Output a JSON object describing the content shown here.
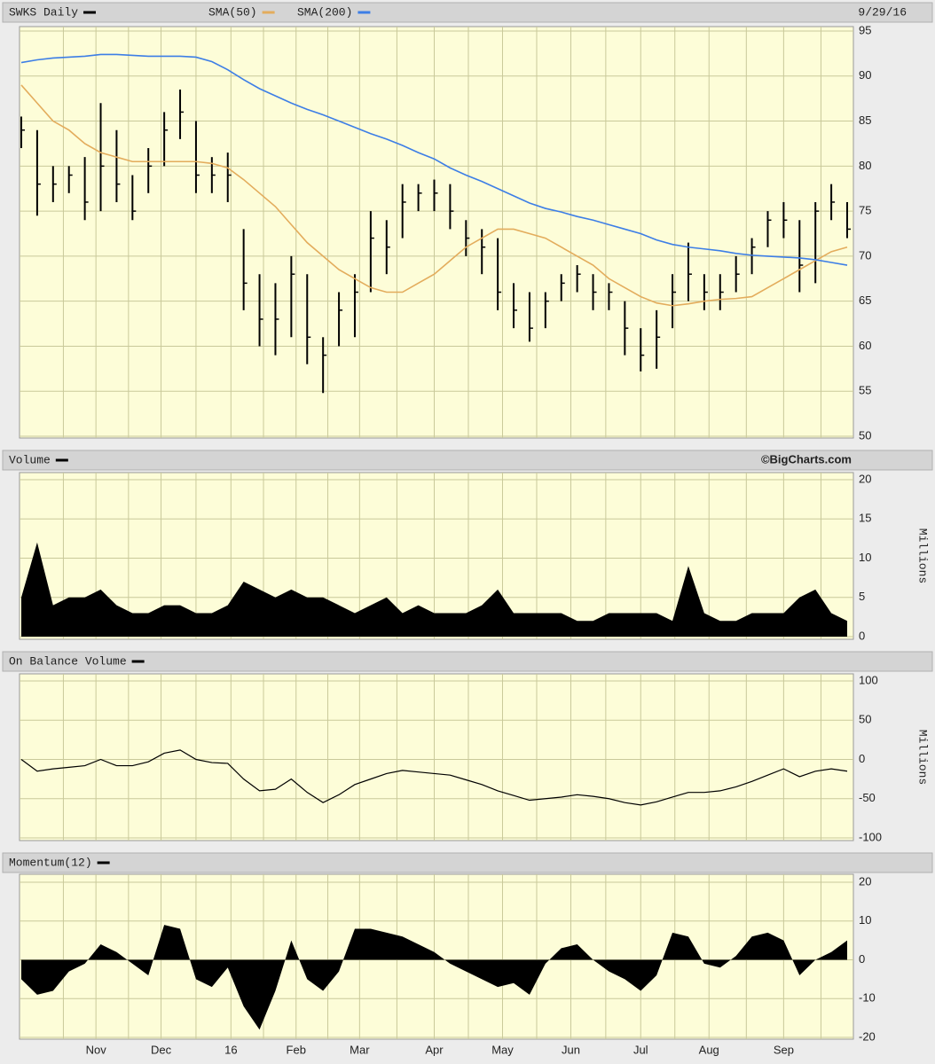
{
  "chart_data": [
    {
      "type": "hlc",
      "title": "SWKS Daily",
      "date": "9/29/16",
      "color": "#000000",
      "x": [
        0,
        1,
        2,
        3,
        4,
        5,
        6,
        7,
        8,
        9,
        10,
        11,
        12,
        13,
        14,
        15,
        16,
        17,
        18,
        19,
        20,
        21,
        22,
        23,
        24,
        25,
        26,
        27,
        28,
        29,
        30,
        31,
        32,
        33,
        34,
        35,
        36,
        37,
        38,
        39,
        40,
        41,
        42,
        43,
        44,
        45,
        46,
        47,
        48,
        49,
        50,
        51,
        52
      ],
      "high": [
        85.5,
        84,
        80,
        80,
        81,
        87,
        84,
        79,
        82,
        86,
        88.5,
        85,
        81,
        81.5,
        73,
        68,
        67,
        70,
        68,
        61,
        66,
        68,
        75,
        74,
        78,
        78,
        78.5,
        78,
        74,
        73,
        72,
        67,
        66,
        66,
        68,
        69,
        68,
        67,
        65,
        62,
        64,
        68,
        71.5,
        68,
        68,
        70,
        72,
        75,
        76,
        74,
        76,
        78,
        76
      ],
      "low": [
        82,
        74.5,
        76,
        77,
        74,
        75,
        76,
        74,
        77,
        80,
        83,
        77,
        77,
        76,
        64,
        60,
        59,
        61,
        58,
        54.8,
        60,
        61,
        66,
        68,
        72,
        75,
        75,
        73,
        70,
        68,
        64,
        62,
        60.5,
        62,
        65,
        66,
        64,
        64,
        59,
        57.2,
        57.5,
        62,
        65,
        64,
        64,
        66,
        68,
        71,
        72,
        66,
        67,
        74,
        72
      ],
      "close": [
        84,
        78,
        78,
        79,
        76,
        80,
        78,
        75,
        80,
        84,
        86,
        79,
        79,
        79,
        67,
        63,
        63,
        68,
        61,
        59,
        64,
        66,
        72,
        71,
        76,
        77,
        77,
        75,
        72,
        71,
        66,
        64,
        62,
        65,
        67,
        68,
        66,
        66,
        62,
        59,
        61,
        66,
        68,
        66,
        66,
        68,
        71,
        74,
        74,
        69,
        75,
        76,
        73
      ],
      "series": [
        {
          "name": "SMA(50)",
          "color": "#e3ac5c",
          "values": [
            89,
            87,
            85,
            84,
            82.5,
            81.5,
            81,
            80.5,
            80.5,
            80.5,
            80.5,
            80.5,
            80.3,
            79.8,
            78.5,
            77,
            75.5,
            73.5,
            71.5,
            70,
            68.5,
            67.5,
            66.5,
            66,
            66,
            67,
            68,
            69.5,
            71,
            72,
            73,
            73,
            72.5,
            72,
            71,
            70,
            69,
            67.5,
            66.5,
            65.5,
            64.8,
            64.5,
            64.7,
            65,
            65.2,
            65.3,
            65.5,
            66.5,
            67.5,
            68.5,
            69.5,
            70.5,
            71
          ]
        },
        {
          "name": "SMA(200)",
          "color": "#3d7ee6",
          "values": [
            91.5,
            91.8,
            92,
            92.1,
            92.2,
            92.4,
            92.4,
            92.3,
            92.2,
            92.2,
            92.2,
            92.1,
            91.6,
            90.7,
            89.6,
            88.6,
            87.8,
            87,
            86.3,
            85.7,
            85,
            84.3,
            83.6,
            83,
            82.3,
            81.5,
            80.8,
            79.8,
            79,
            78.3,
            77.5,
            76.7,
            75.9,
            75.3,
            74.9,
            74.4,
            74,
            73.5,
            73,
            72.5,
            71.8,
            71.3,
            71,
            70.8,
            70.6,
            70.3,
            70.1,
            70,
            69.9,
            69.8,
            69.6,
            69.3,
            69
          ]
        }
      ],
      "xlim": [
        0,
        52
      ],
      "ylim": [
        50,
        95
      ],
      "yticks": [
        50,
        55,
        60,
        65,
        70,
        75,
        80,
        85,
        90,
        95
      ],
      "grid": true
    },
    {
      "type": "area",
      "title": "Volume",
      "credit": "©BigCharts.com",
      "y_label": "Millions",
      "color": "#000000",
      "x": [
        0,
        1,
        2,
        3,
        4,
        5,
        6,
        7,
        8,
        9,
        10,
        11,
        12,
        13,
        14,
        15,
        16,
        17,
        18,
        19,
        20,
        21,
        22,
        23,
        24,
        25,
        26,
        27,
        28,
        29,
        30,
        31,
        32,
        33,
        34,
        35,
        36,
        37,
        38,
        39,
        40,
        41,
        42,
        43,
        44,
        45,
        46,
        47,
        48,
        49,
        50,
        51,
        52
      ],
      "values": [
        5,
        12,
        4,
        5,
        5,
        6,
        4,
        3,
        3,
        4,
        4,
        3,
        3,
        4,
        7,
        6,
        5,
        6,
        5,
        5,
        4,
        3,
        4,
        5,
        3,
        4,
        3,
        3,
        3,
        4,
        6,
        3,
        3,
        3,
        3,
        2,
        2,
        3,
        3,
        3,
        3,
        2,
        9,
        3,
        2,
        2,
        3,
        3,
        3,
        5,
        6,
        3,
        2
      ],
      "xlim": [
        0,
        52
      ],
      "ylim": [
        0,
        20
      ],
      "yticks": [
        0,
        5,
        10,
        15,
        20
      ],
      "grid": true
    },
    {
      "type": "line",
      "title": "On Balance Volume",
      "y_label": "Millions",
      "color": "#000000",
      "x": [
        0,
        1,
        2,
        3,
        4,
        5,
        6,
        7,
        8,
        9,
        10,
        11,
        12,
        13,
        14,
        15,
        16,
        17,
        18,
        19,
        20,
        21,
        22,
        23,
        24,
        25,
        26,
        27,
        28,
        29,
        30,
        31,
        32,
        33,
        34,
        35,
        36,
        37,
        38,
        39,
        40,
        41,
        42,
        43,
        44,
        45,
        46,
        47,
        48,
        49,
        50,
        51,
        52
      ],
      "values": [
        0,
        -15,
        -12,
        -10,
        -8,
        0,
        -8,
        -8,
        -3,
        8,
        12,
        0,
        -4,
        -5,
        -25,
        -40,
        -38,
        -25,
        -42,
        -55,
        -45,
        -32,
        -25,
        -18,
        -14,
        -16,
        -18,
        -20,
        -26,
        -32,
        -40,
        -46,
        -52,
        -50,
        -48,
        -45,
        -47,
        -50,
        -55,
        -58,
        -54,
        -48,
        -42,
        -42,
        -40,
        -35,
        -28,
        -20,
        -12,
        -22,
        -15,
        -12,
        -15
      ],
      "xlim": [
        0,
        52
      ],
      "ylim": [
        -100,
        100
      ],
      "yticks": [
        -100,
        -50,
        0,
        50,
        100
      ],
      "grid": true
    },
    {
      "type": "area",
      "title": "Momentum(12)",
      "color": "#000000",
      "x": [
        0,
        1,
        2,
        3,
        4,
        5,
        6,
        7,
        8,
        9,
        10,
        11,
        12,
        13,
        14,
        15,
        16,
        17,
        18,
        19,
        20,
        21,
        22,
        23,
        24,
        25,
        26,
        27,
        28,
        29,
        30,
        31,
        32,
        33,
        34,
        35,
        36,
        37,
        38,
        39,
        40,
        41,
        42,
        43,
        44,
        45,
        46,
        47,
        48,
        49,
        50,
        51,
        52
      ],
      "values": [
        -5,
        -9,
        -8,
        -3,
        -1,
        4,
        2,
        -1,
        -4,
        9,
        8,
        -5,
        -7,
        -2,
        -12,
        -18,
        -8,
        5,
        -5,
        -8,
        -3,
        8,
        8,
        7,
        6,
        4,
        2,
        -1,
        -3,
        -5,
        -7,
        -6,
        -9,
        -1,
        3,
        4,
        0,
        -3,
        -5,
        -8,
        -4,
        7,
        6,
        -1,
        -2,
        1,
        6,
        7,
        5,
        -4,
        0,
        2,
        5
      ],
      "xlim": [
        0,
        52
      ],
      "ylim": [
        -20,
        20
      ],
      "yticks": [
        -20,
        -10,
        0,
        10,
        20
      ],
      "grid": true,
      "xticks": [
        {
          "value": 4.7,
          "label": "Nov"
        },
        {
          "value": 8.8,
          "label": "Dec"
        },
        {
          "value": 13.2,
          "label": "16"
        },
        {
          "value": 17.3,
          "label": "Feb"
        },
        {
          "value": 21.3,
          "label": "Mar"
        },
        {
          "value": 26.0,
          "label": "Apr"
        },
        {
          "value": 30.3,
          "label": "May"
        },
        {
          "value": 34.6,
          "label": "Jun"
        },
        {
          "value": 39.0,
          "label": "Jul"
        },
        {
          "value": 43.3,
          "label": "Aug"
        },
        {
          "value": 48.0,
          "label": "Sep"
        }
      ]
    }
  ]
}
